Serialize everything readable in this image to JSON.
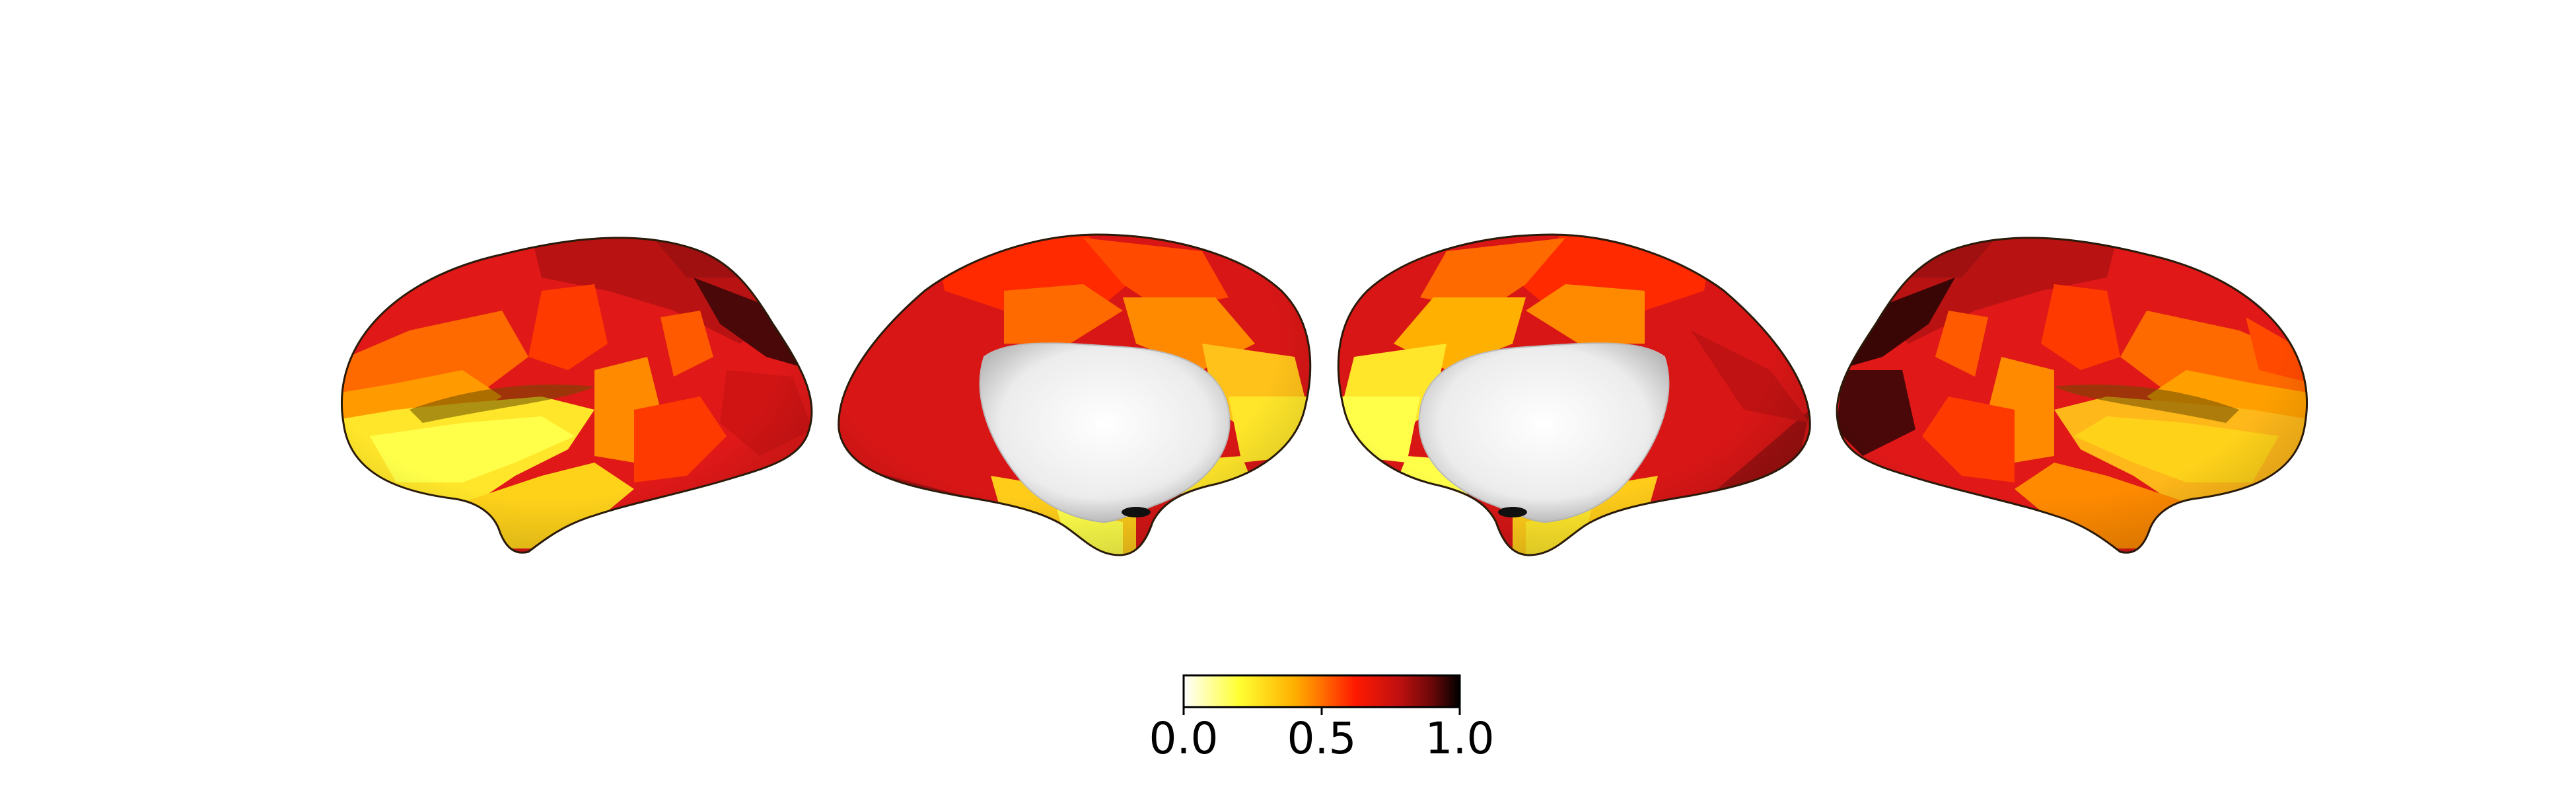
{
  "figure": {
    "description_type": "cortical surface brain maps (left lateral, left medial, right medial, right lateral)",
    "views": [
      "lateral-left",
      "medial-left",
      "medial-right",
      "lateral-right"
    ]
  },
  "colorbar": {
    "colormap": "hot_r",
    "min": 0.0,
    "max": 1.0,
    "tick_labels": [
      "0.0",
      "0.5",
      "1.0"
    ],
    "colors": [
      "#ffffff",
      "#ffff33",
      "#ffb000",
      "#ff6a00",
      "#ff1a00",
      "#c81010",
      "#7a0a0a",
      "#000000"
    ]
  },
  "palette": {
    "low": "#ffff3a",
    "low_mid": "#ffd21a",
    "mid": "#ff8a00",
    "mid_high": "#ff3a00",
    "high": "#d81616",
    "very_high": "#a81010",
    "extreme": "#3a0505",
    "wall": "#f2f2f2"
  }
}
